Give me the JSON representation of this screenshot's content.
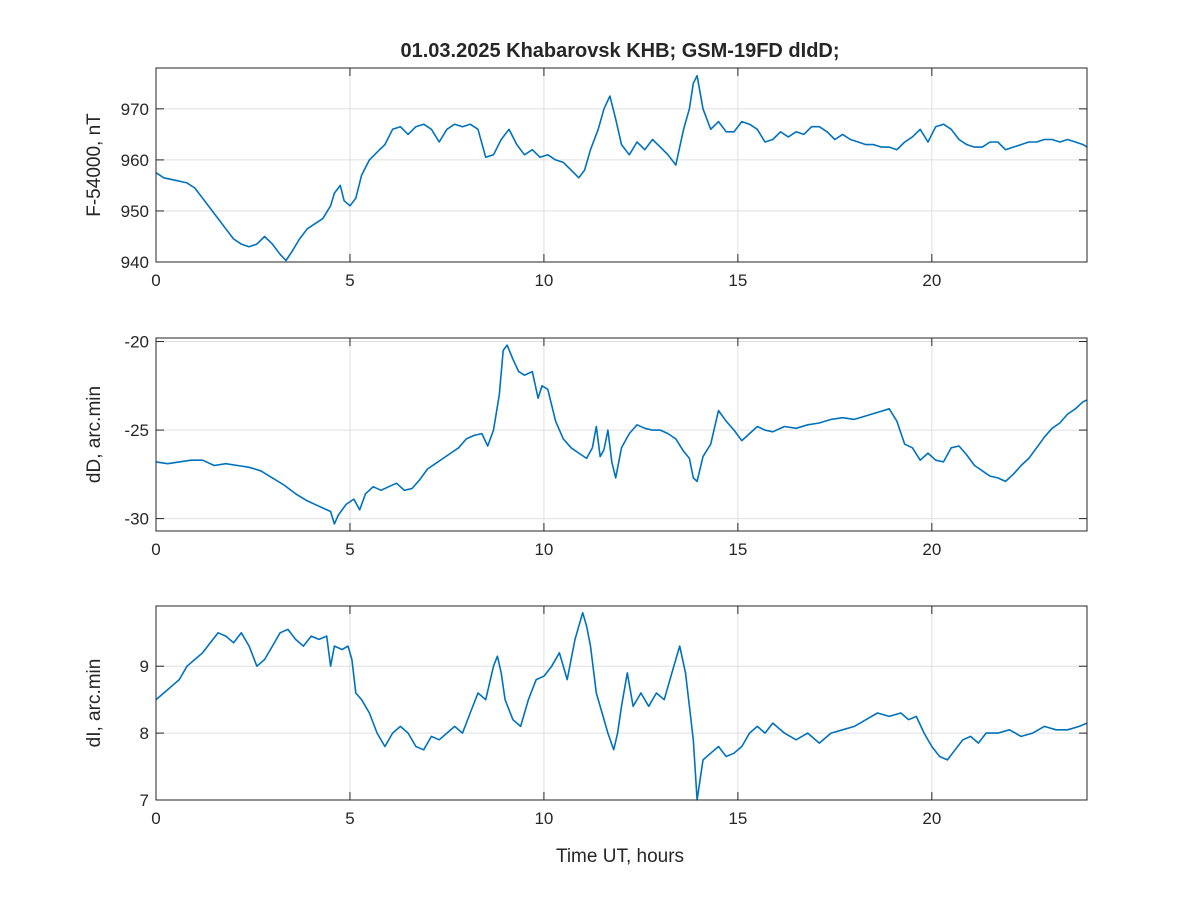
{
  "chart_data": [
    {
      "type": "line",
      "title": "01.03.2025  Khabarovsk KHB; GSM-19FD dIdD;",
      "xlabel": "",
      "ylabel": "F-54000, nT",
      "xlim": [
        0,
        24
      ],
      "ylim": [
        940,
        978
      ],
      "xticks": [
        0,
        5,
        10,
        15,
        20
      ],
      "xtick_labels": [
        "0",
        "5",
        "10",
        "15",
        "20"
      ],
      "yticks": [
        940,
        950,
        960,
        970
      ],
      "ytick_labels": [
        "940",
        "950",
        "960",
        "970"
      ],
      "grid": true,
      "color": "#0072BD",
      "series": [
        {
          "x": [
            0,
            0.2,
            0.5,
            0.8,
            1.0,
            1.2,
            1.4,
            1.6,
            1.8,
            2.0,
            2.2,
            2.4,
            2.6,
            2.8,
            3.0,
            3.2,
            3.35,
            3.5,
            3.7,
            3.9,
            4.1,
            4.3,
            4.5,
            4.6,
            4.75,
            4.85,
            5.0,
            5.15,
            5.3,
            5.5,
            5.7,
            5.9,
            6.1,
            6.3,
            6.5,
            6.7,
            6.9,
            7.1,
            7.3,
            7.5,
            7.7,
            7.9,
            8.1,
            8.3,
            8.5,
            8.7,
            8.9,
            9.1,
            9.3,
            9.5,
            9.7,
            9.9,
            10.1,
            10.3,
            10.5,
            10.7,
            10.9,
            11.05,
            11.2,
            11.4,
            11.55,
            11.7,
            11.85,
            12.0,
            12.2,
            12.4,
            12.6,
            12.8,
            13.0,
            13.2,
            13.4,
            13.6,
            13.75,
            13.85,
            13.95,
            14.1,
            14.3,
            14.5,
            14.7,
            14.9,
            15.1,
            15.3,
            15.5,
            15.7,
            15.9,
            16.1,
            16.3,
            16.5,
            16.7,
            16.9,
            17.1,
            17.3,
            17.5,
            17.7,
            17.9,
            18.1,
            18.3,
            18.5,
            18.7,
            18.9,
            19.1,
            19.3,
            19.5,
            19.7,
            19.9,
            20.1,
            20.3,
            20.5,
            20.7,
            20.9,
            21.1,
            21.3,
            21.5,
            21.7,
            21.9,
            22.1,
            22.3,
            22.5,
            22.7,
            22.9,
            23.1,
            23.3,
            23.5,
            23.7,
            23.9,
            24.0
          ],
          "y": [
            957.5,
            956.5,
            956,
            955.5,
            954.5,
            952.5,
            950.5,
            948.5,
            946.5,
            944.5,
            943.5,
            943,
            943.5,
            945,
            943.5,
            941.5,
            940.3,
            942,
            944.5,
            946.5,
            947.5,
            948.5,
            951,
            953.5,
            955,
            952,
            951,
            952.5,
            957,
            960,
            961.5,
            963,
            966,
            966.5,
            965,
            966.5,
            967,
            966,
            963.5,
            966,
            967,
            966.5,
            967,
            966,
            960.5,
            961,
            964,
            966,
            963,
            961,
            962,
            960.5,
            961,
            960,
            959.5,
            958,
            956.5,
            958,
            962,
            966,
            970,
            972.5,
            968,
            963,
            961,
            963.5,
            962,
            964,
            962.5,
            961,
            959,
            966,
            970,
            975,
            976.5,
            970,
            966,
            967.5,
            965.5,
            965.5,
            967.5,
            967,
            966,
            963.5,
            964,
            965.5,
            964.5,
            965.5,
            965,
            966.5,
            966.5,
            965.5,
            964,
            965,
            964,
            963.5,
            963,
            963,
            962.5,
            962.5,
            962,
            963.5,
            964.5,
            966,
            963.5,
            966.5,
            967,
            966,
            964,
            963,
            962.5,
            962.5,
            963.5,
            963.5,
            962,
            962.5,
            963,
            963.5,
            963.5,
            964,
            964,
            963.5,
            964,
            963.5,
            963,
            962.5
          ]
        }
      ]
    },
    {
      "type": "line",
      "title": "",
      "xlabel": "",
      "ylabel": "dD, arc.min",
      "xlim": [
        0,
        24
      ],
      "ylim": [
        -30.7,
        -19.8
      ],
      "xticks": [
        0,
        5,
        10,
        15,
        20
      ],
      "xtick_labels": [
        "0",
        "5",
        "10",
        "15",
        "20"
      ],
      "yticks": [
        -30,
        -25,
        -20
      ],
      "ytick_labels": [
        "-30",
        "-25",
        "-20"
      ],
      "grid": true,
      "color": "#0072BD",
      "series": [
        {
          "x": [
            0,
            0.3,
            0.6,
            0.9,
            1.2,
            1.5,
            1.8,
            2.1,
            2.4,
            2.7,
            3.0,
            3.3,
            3.6,
            3.9,
            4.2,
            4.5,
            4.6,
            4.7,
            4.9,
            5.1,
            5.25,
            5.4,
            5.6,
            5.8,
            6.0,
            6.2,
            6.4,
            6.6,
            6.8,
            7.0,
            7.2,
            7.4,
            7.6,
            7.8,
            8.0,
            8.2,
            8.4,
            8.55,
            8.7,
            8.85,
            8.95,
            9.05,
            9.2,
            9.35,
            9.5,
            9.7,
            9.85,
            9.95,
            10.1,
            10.3,
            10.5,
            10.7,
            10.9,
            11.1,
            11.25,
            11.35,
            11.45,
            11.55,
            11.65,
            11.75,
            11.85,
            12.0,
            12.2,
            12.4,
            12.6,
            12.8,
            13.0,
            13.2,
            13.4,
            13.6,
            13.75,
            13.85,
            13.95,
            14.1,
            14.3,
            14.5,
            14.7,
            14.9,
            15.1,
            15.3,
            15.5,
            15.7,
            15.9,
            16.2,
            16.5,
            16.8,
            17.1,
            17.4,
            17.7,
            18.0,
            18.3,
            18.6,
            18.9,
            19.1,
            19.3,
            19.5,
            19.7,
            19.9,
            20.1,
            20.3,
            20.5,
            20.7,
            20.9,
            21.1,
            21.3,
            21.5,
            21.7,
            21.9,
            22.1,
            22.3,
            22.5,
            22.7,
            22.9,
            23.1,
            23.3,
            23.5,
            23.7,
            23.9,
            24.0
          ],
          "y": [
            -26.8,
            -26.9,
            -26.8,
            -26.7,
            -26.7,
            -27.0,
            -26.9,
            -27.0,
            -27.1,
            -27.3,
            -27.7,
            -28.1,
            -28.6,
            -29.0,
            -29.3,
            -29.6,
            -30.3,
            -29.8,
            -29.2,
            -28.9,
            -29.5,
            -28.6,
            -28.2,
            -28.4,
            -28.2,
            -28.0,
            -28.4,
            -28.3,
            -27.8,
            -27.2,
            -26.9,
            -26.6,
            -26.3,
            -26.0,
            -25.5,
            -25.3,
            -25.2,
            -25.9,
            -25.0,
            -23.0,
            -20.5,
            -20.2,
            -21.0,
            -21.7,
            -21.9,
            -21.7,
            -23.2,
            -22.5,
            -22.7,
            -24.5,
            -25.5,
            -26.0,
            -26.3,
            -26.6,
            -26.0,
            -24.8,
            -26.5,
            -26.1,
            -25.0,
            -26.8,
            -27.7,
            -26.0,
            -25.2,
            -24.7,
            -24.9,
            -25.0,
            -25.0,
            -25.2,
            -25.5,
            -26.2,
            -26.6,
            -27.7,
            -27.9,
            -26.5,
            -25.8,
            -23.9,
            -24.5,
            -25.0,
            -25.6,
            -25.2,
            -24.8,
            -25.0,
            -25.1,
            -24.8,
            -24.9,
            -24.7,
            -24.6,
            -24.4,
            -24.3,
            -24.4,
            -24.2,
            -24.0,
            -23.8,
            -24.5,
            -25.8,
            -26.0,
            -26.7,
            -26.3,
            -26.7,
            -26.8,
            -26.0,
            -25.9,
            -26.4,
            -27.0,
            -27.3,
            -27.6,
            -27.7,
            -27.9,
            -27.5,
            -27.0,
            -26.6,
            -26.0,
            -25.4,
            -24.9,
            -24.6,
            -24.1,
            -23.8,
            -23.4,
            -23.3
          ]
        }
      ]
    },
    {
      "type": "line",
      "title": "",
      "xlabel": "Time UT, hours",
      "ylabel": "dI, arc.min",
      "xlim": [
        0,
        24
      ],
      "ylim": [
        7,
        9.9
      ],
      "xticks": [
        0,
        5,
        10,
        15,
        20
      ],
      "xtick_labels": [
        "0",
        "5",
        "10",
        "15",
        "20"
      ],
      "yticks": [
        7,
        8,
        9
      ],
      "ytick_labels": [
        "7",
        "8",
        "9"
      ],
      "grid": true,
      "color": "#0072BD",
      "series": [
        {
          "x": [
            0,
            0.2,
            0.4,
            0.6,
            0.8,
            1.0,
            1.2,
            1.4,
            1.6,
            1.8,
            2.0,
            2.2,
            2.4,
            2.6,
            2.8,
            3.0,
            3.2,
            3.4,
            3.6,
            3.8,
            4.0,
            4.2,
            4.4,
            4.5,
            4.6,
            4.8,
            4.95,
            5.05,
            5.15,
            5.3,
            5.5,
            5.7,
            5.9,
            6.1,
            6.3,
            6.5,
            6.7,
            6.9,
            7.1,
            7.3,
            7.5,
            7.7,
            7.9,
            8.1,
            8.3,
            8.5,
            8.7,
            8.8,
            8.9,
            9.0,
            9.2,
            9.4,
            9.6,
            9.8,
            10.0,
            10.2,
            10.4,
            10.6,
            10.8,
            11.0,
            11.1,
            11.2,
            11.35,
            11.5,
            11.65,
            11.8,
            11.9,
            12.0,
            12.15,
            12.3,
            12.5,
            12.7,
            12.9,
            13.1,
            13.3,
            13.5,
            13.65,
            13.75,
            13.85,
            13.95,
            14.1,
            14.3,
            14.5,
            14.7,
            14.9,
            15.1,
            15.3,
            15.5,
            15.7,
            15.9,
            16.2,
            16.5,
            16.8,
            17.1,
            17.4,
            17.7,
            18.0,
            18.3,
            18.6,
            18.9,
            19.2,
            19.4,
            19.6,
            19.8,
            20.0,
            20.2,
            20.4,
            20.6,
            20.8,
            21.0,
            21.2,
            21.4,
            21.7,
            22.0,
            22.3,
            22.6,
            22.9,
            23.2,
            23.5,
            23.8,
            24.0
          ],
          "y": [
            8.5,
            8.6,
            8.7,
            8.8,
            9.0,
            9.1,
            9.2,
            9.35,
            9.5,
            9.45,
            9.35,
            9.5,
            9.3,
            9.0,
            9.1,
            9.3,
            9.5,
            9.55,
            9.4,
            9.3,
            9.45,
            9.4,
            9.45,
            9.0,
            9.3,
            9.25,
            9.3,
            9.1,
            8.6,
            8.5,
            8.3,
            8.0,
            7.8,
            8.0,
            8.1,
            8.0,
            7.8,
            7.75,
            7.95,
            7.9,
            8.0,
            8.1,
            8.0,
            8.3,
            8.6,
            8.5,
            9.0,
            9.15,
            8.9,
            8.5,
            8.2,
            8.1,
            8.5,
            8.8,
            8.85,
            9.0,
            9.2,
            8.8,
            9.4,
            9.8,
            9.6,
            9.3,
            8.6,
            8.3,
            8.0,
            7.75,
            8.0,
            8.4,
            8.9,
            8.4,
            8.6,
            8.4,
            8.6,
            8.5,
            8.9,
            9.3,
            8.9,
            8.4,
            7.9,
            7.0,
            7.6,
            7.7,
            7.8,
            7.65,
            7.7,
            7.8,
            8.0,
            8.1,
            8.0,
            8.15,
            8.0,
            7.9,
            8.0,
            7.85,
            8.0,
            8.05,
            8.1,
            8.2,
            8.3,
            8.25,
            8.3,
            8.2,
            8.25,
            8.0,
            7.8,
            7.65,
            7.6,
            7.75,
            7.9,
            7.95,
            7.85,
            8.0,
            8.0,
            8.05,
            7.95,
            8.0,
            8.1,
            8.05,
            8.05,
            8.1,
            8.15
          ]
        }
      ]
    }
  ]
}
